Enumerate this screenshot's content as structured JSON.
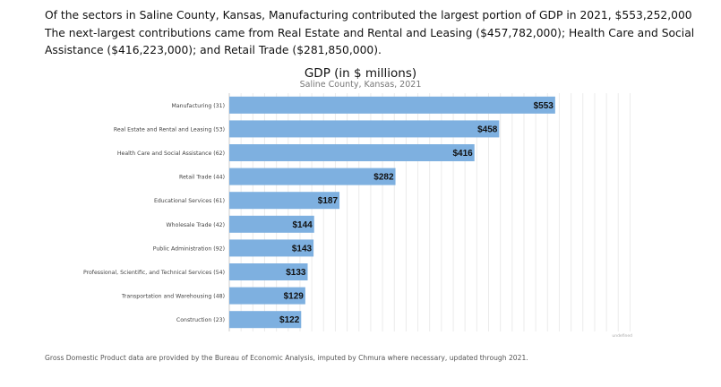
{
  "intro": {
    "line1": "Of the sectors in Saline County, Kansas, Manufacturing contributed the largest portion of GDP in 2021, $553,252,000",
    "line2": "The next-largest contributions came from Real Estate and Rental and Leasing ($457,782,000); Health Care and Social Assistance ($416,223,000); and Retail Trade ($281,850,000)."
  },
  "chart_data": {
    "type": "bar",
    "orientation": "horizontal",
    "title": "GDP (in $ millions)",
    "subtitle": "Saline County, Kansas, 2021",
    "categories": [
      "Manufacturing (31)",
      "Real Estate and Rental and Leasing (53)",
      "Health Care and Social Assistance (62)",
      "Retail Trade (44)",
      "Educational Services (61)",
      "Wholesale Trade (42)",
      "Public Administration (92)",
      "Professional, Scientific, and Technical Services (54)",
      "Transportation and Warehousing (48)",
      "Construction (23)"
    ],
    "values": [
      553,
      458,
      416,
      282,
      187,
      144,
      143,
      133,
      129,
      122
    ],
    "value_labels": [
      "$553",
      "$458",
      "$416",
      "$282",
      "$187",
      "$144",
      "$143",
      "$133",
      "$129",
      "$122"
    ],
    "xlim": [
      0,
      690
    ],
    "grid": true,
    "axis_tick_label": "undefined",
    "bar_color": "#7eb0e0"
  },
  "footnote": "Gross Domestic Product data are provided by the Bureau of Economic Analysis, imputed by Chmura where necessary, updated through 2021."
}
